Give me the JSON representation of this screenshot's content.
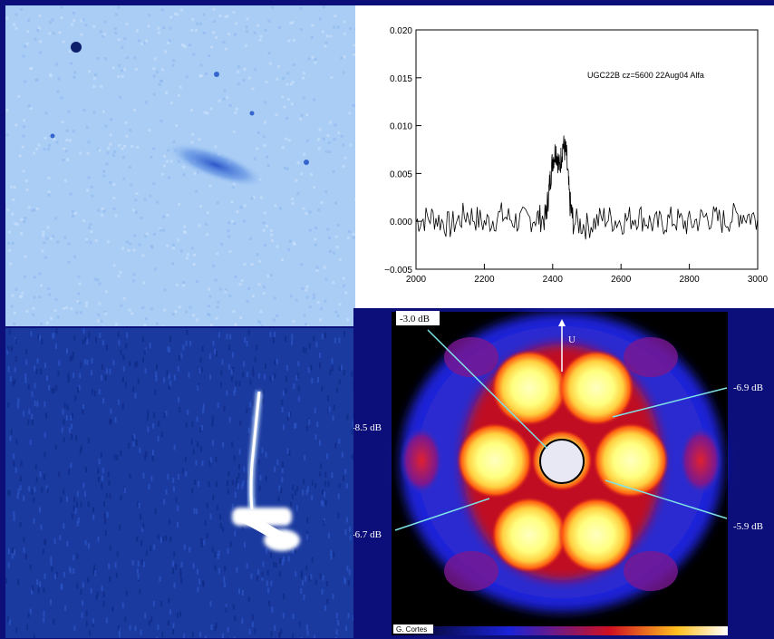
{
  "optical_image": {
    "background": "#a9cdf5",
    "source_color": "#2a5fd1"
  },
  "radio_image": {
    "background": "#1a3aa0",
    "source_color": "#ffffff"
  },
  "chart_data": {
    "type": "line",
    "title": "",
    "annotation": "UGC22B cz=5600 22Aug04 Alfa",
    "xlabel": "",
    "ylabel": "",
    "xlim": [
      2000,
      3000
    ],
    "ylim": [
      -0.005,
      0.02
    ],
    "x_ticks": [
      "2000",
      "2200",
      "2400",
      "2600",
      "2800",
      "3000"
    ],
    "y_ticks": [
      "0.020",
      "0.015",
      "0.010",
      "0.005",
      "0.000",
      "−0.005"
    ],
    "series": [
      {
        "x": [
          2000,
          2050,
          2100,
          2150,
          2200,
          2250,
          2300,
          2350,
          2380,
          2390,
          2400,
          2410,
          2420,
          2430,
          2440,
          2450,
          2460,
          2500,
          2550,
          2600,
          2650,
          2700,
          2750,
          2800,
          2850,
          2900,
          2950,
          3000
        ],
        "y": [
          0.0,
          0.0005,
          -0.0005,
          0.0008,
          -0.0002,
          0.0006,
          0.0,
          0.0004,
          0.0003,
          0.0035,
          0.0065,
          0.0075,
          0.0055,
          0.008,
          0.007,
          0.002,
          0.0,
          -0.0005,
          0.0004,
          0.0,
          0.0006,
          -0.0004,
          0.0002,
          -0.0003,
          0.0005,
          0.0,
          0.0008,
          0.0003
        ]
      }
    ]
  },
  "beam_map": {
    "labels": {
      "u_axis": "U",
      "db_center": "-3.0 dB",
      "db_right_top": "-6.9 dB",
      "db_left_top": "-8.5 dB",
      "db_left_bottom": "-6.7 dB",
      "db_right_bottom": "-5.9 dB",
      "credit": "G. Cortes"
    },
    "colors": {
      "background": "#000000",
      "outer": "#1a22d8",
      "mid": "#c4101e",
      "hot": "#ff5a10",
      "core": "#ffff90",
      "arrow": "#7fe3e6"
    }
  }
}
